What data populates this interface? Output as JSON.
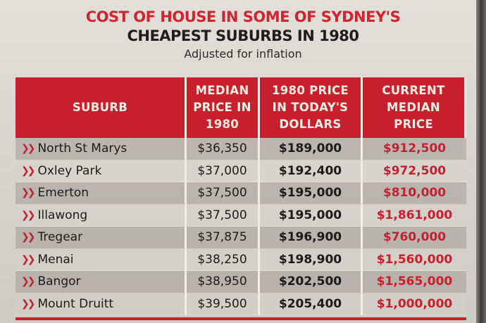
{
  "title_line1": "COST OF HOUSE IN SOME OF SYDNEY'S",
  "title_line2": "CHEAPEST SUBURBS IN 1980",
  "subtitle": "Adjusted for inflation",
  "colors": {
    "accent": "#c81f2c"
  },
  "bullet_icon": "double-chevron-right",
  "headers": [
    [
      "SUBURB"
    ],
    [
      "MEDIAN",
      "PRICE IN",
      "1980"
    ],
    [
      "1980 PRICE",
      "IN TODAY'S",
      "DOLLARS"
    ],
    [
      "CURRENT",
      "MEDIAN",
      "PRICE"
    ]
  ],
  "rows": [
    {
      "suburb": "North St Marys",
      "median_1980": "$36,350",
      "todays_dollars": "$189,000",
      "current": "$912,500"
    },
    {
      "suburb": "Oxley Park",
      "median_1980": "$37,000",
      "todays_dollars": "$192,400",
      "current": "$972,500"
    },
    {
      "suburb": "Emerton",
      "median_1980": "$37,500",
      "todays_dollars": "$195,000",
      "current": "$810,000"
    },
    {
      "suburb": "Illawong",
      "median_1980": "$37,500",
      "todays_dollars": "$195,000",
      "current": "$1,861,000"
    },
    {
      "suburb": "Tregear",
      "median_1980": "$37,875",
      "todays_dollars": "$196,900",
      "current": "$760,000"
    },
    {
      "suburb": "Menai",
      "median_1980": "$38,250",
      "todays_dollars": "$198,900",
      "current": "$1,560,000"
    },
    {
      "suburb": "Bangor",
      "median_1980": "$38,950",
      "todays_dollars": "$202,500",
      "current": "$1,565,000"
    },
    {
      "suburb": "Mount Druitt",
      "median_1980": "$39,500",
      "todays_dollars": "$205,400",
      "current": "$1,000,000"
    }
  ]
}
